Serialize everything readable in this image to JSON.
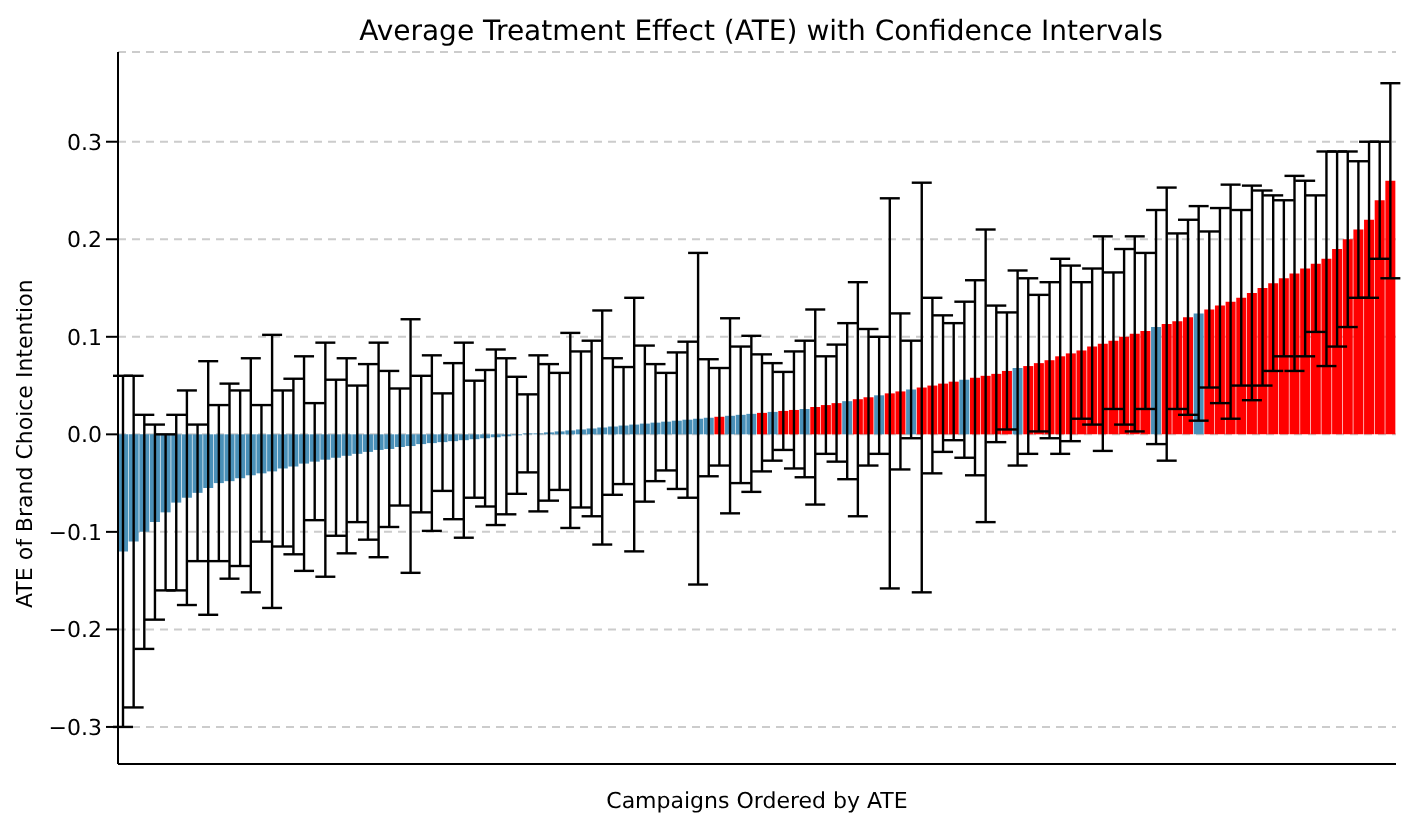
{
  "chart_data": {
    "type": "bar",
    "title": "Average Treatment Effect (ATE) with Confidence Intervals",
    "xlabel": "Campaigns Ordered by ATE",
    "ylabel": "ATE of Brand Choice Intention",
    "categories": [
      null,
      null,
      null,
      null,
      null,
      null,
      null,
      null,
      null,
      null,
      null,
      null,
      null,
      null,
      null,
      null,
      null,
      null,
      null,
      null,
      null,
      null,
      null,
      null,
      null,
      null,
      null,
      null,
      null,
      null,
      null,
      null,
      null,
      null,
      null,
      null,
      null,
      null,
      null,
      null,
      null,
      null,
      null,
      null,
      null,
      null,
      null,
      null,
      null,
      null,
      null,
      null,
      null,
      null,
      null,
      null,
      null,
      null,
      null,
      null,
      null,
      null,
      null,
      null,
      null,
      null,
      null,
      null,
      null,
      null,
      null,
      null,
      null,
      null,
      null,
      null,
      null,
      null,
      null,
      null,
      null,
      null,
      null,
      null,
      null,
      null,
      null,
      null,
      null,
      null,
      null,
      null,
      null,
      null,
      null,
      null,
      null,
      null,
      null,
      null,
      null,
      null,
      null,
      null,
      null,
      null,
      null,
      null,
      null,
      null,
      null,
      null,
      null,
      null,
      null,
      null,
      null,
      null,
      null,
      null
    ],
    "values": [
      -0.12,
      -0.11,
      -0.1,
      -0.09,
      -0.08,
      -0.07,
      -0.065,
      -0.06,
      -0.055,
      -0.05,
      -0.048,
      -0.045,
      -0.042,
      -0.04,
      -0.038,
      -0.035,
      -0.033,
      -0.03,
      -0.028,
      -0.026,
      -0.024,
      -0.022,
      -0.02,
      -0.018,
      -0.016,
      -0.015,
      -0.013,
      -0.012,
      -0.01,
      -0.009,
      -0.008,
      -0.007,
      -0.006,
      -0.005,
      -0.004,
      -0.003,
      -0.002,
      -0.001,
      0.001,
      0.001,
      0.002,
      0.003,
      0.004,
      0.005,
      0.006,
      0.007,
      0.008,
      0.009,
      0.01,
      0.011,
      0.012,
      0.013,
      0.014,
      0.015,
      0.016,
      0.017,
      0.018,
      0.019,
      0.02,
      0.021,
      0.022,
      0.023,
      0.024,
      0.025,
      0.026,
      0.028,
      0.03,
      0.032,
      0.034,
      0.036,
      0.038,
      0.04,
      0.042,
      0.044,
      0.046,
      0.048,
      0.05,
      0.052,
      0.054,
      0.056,
      0.058,
      0.06,
      0.062,
      0.065,
      0.068,
      0.07,
      0.073,
      0.076,
      0.08,
      0.083,
      0.086,
      0.09,
      0.093,
      0.096,
      0.1,
      0.103,
      0.106,
      0.11,
      0.113,
      0.116,
      0.12,
      0.124,
      0.128,
      0.132,
      0.136,
      0.14,
      0.145,
      0.15,
      0.155,
      0.16,
      0.165,
      0.17,
      0.175,
      0.18,
      0.19,
      0.2,
      0.21,
      0.22,
      0.24,
      0.26
    ],
    "errors": [
      0.18,
      0.17,
      0.12,
      0.1,
      0.08,
      0.09,
      0.11,
      0.07,
      0.13,
      0.08,
      0.1,
      0.09,
      0.12,
      0.07,
      0.14,
      0.08,
      0.09,
      0.11,
      0.06,
      0.12,
      0.08,
      0.1,
      0.07,
      0.09,
      0.11,
      0.08,
      0.06,
      0.13,
      0.07,
      0.09,
      0.05,
      0.08,
      0.1,
      0.06,
      0.07,
      0.09,
      0.08,
      0.06,
      0.04,
      0.08,
      0.07,
      0.06,
      0.1,
      0.08,
      0.09,
      0.12,
      0.07,
      0.06,
      0.13,
      0.08,
      0.06,
      0.05,
      0.07,
      0.08,
      0.17,
      0.06,
      0.05,
      0.1,
      0.07,
      0.08,
      0.06,
      0.05,
      0.04,
      0.06,
      0.07,
      0.1,
      0.05,
      0.06,
      0.08,
      0.12,
      0.07,
      0.06,
      0.2,
      0.08,
      0.05,
      0.21,
      0.09,
      0.07,
      0.06,
      0.08,
      0.1,
      0.15,
      0.07,
      0.06,
      0.1,
      0.09,
      0.07,
      0.08,
      0.1,
      0.09,
      0.07,
      0.08,
      0.11,
      0.07,
      0.09,
      0.1,
      0.08,
      0.12,
      0.14,
      0.09,
      0.1,
      0.11,
      0.08,
      0.1,
      0.12,
      0.09,
      0.11,
      0.1,
      0.09,
      0.08,
      0.1,
      0.09,
      0.07,
      0.11,
      0.1,
      0.09,
      0.07,
      0.08,
      0.06,
      0.1
    ],
    "colors": [
      "#4a90b8",
      "#4a90b8",
      "#4a90b8",
      "#4a90b8",
      "#4a90b8",
      "#4a90b8",
      "#4a90b8",
      "#4a90b8",
      "#4a90b8",
      "#4a90b8",
      "#4a90b8",
      "#4a90b8",
      "#4a90b8",
      "#4a90b8",
      "#4a90b8",
      "#4a90b8",
      "#4a90b8",
      "#4a90b8",
      "#4a90b8",
      "#4a90b8",
      "#4a90b8",
      "#4a90b8",
      "#4a90b8",
      "#4a90b8",
      "#4a90b8",
      "#4a90b8",
      "#4a90b8",
      "#4a90b8",
      "#4a90b8",
      "#4a90b8",
      "#4a90b8",
      "#4a90b8",
      "#4a90b8",
      "#4a90b8",
      "#4a90b8",
      "#4a90b8",
      "#4a90b8",
      "#4a90b8",
      "#4a90b8",
      "#4a90b8",
      "#4a90b8",
      "#4a90b8",
      "#4a90b8",
      "#4a90b8",
      "#4a90b8",
      "#4a90b8",
      "#4a90b8",
      "#4a90b8",
      "#4a90b8",
      "#4a90b8",
      "#4a90b8",
      "#4a90b8",
      "#4a90b8",
      "#4a90b8",
      "#4a90b8",
      "#4a90b8",
      "#ff0000",
      "#4a90b8",
      "#4a90b8",
      "#4a90b8",
      "#ff0000",
      "#4a90b8",
      "#ff0000",
      "#ff0000",
      "#4a90b8",
      "#ff0000",
      "#ff0000",
      "#ff0000",
      "#4a90b8",
      "#ff0000",
      "#ff0000",
      "#4a90b8",
      "#ff0000",
      "#ff0000",
      "#4a90b8",
      "#ff0000",
      "#ff0000",
      "#ff0000",
      "#ff0000",
      "#4a90b8",
      "#ff0000",
      "#ff0000",
      "#ff0000",
      "#ff0000",
      "#4a90b8",
      "#ff0000",
      "#ff0000",
      "#ff0000",
      "#ff0000",
      "#ff0000",
      "#ff0000",
      "#ff0000",
      "#ff0000",
      "#ff0000",
      "#ff0000",
      "#ff0000",
      "#ff0000",
      "#4a90b8",
      "#ff0000",
      "#ff0000",
      "#ff0000",
      "#4a90b8",
      "#ff0000",
      "#ff0000",
      "#ff0000",
      "#ff0000",
      "#ff0000",
      "#ff0000",
      "#ff0000",
      "#ff0000",
      "#ff0000",
      "#ff0000",
      "#ff0000",
      "#ff0000",
      "#ff0000",
      "#ff0000",
      "#ff0000",
      "#ff0000",
      "#ff0000",
      "#ff0000"
    ],
    "ylim": [
      -0.338,
      0.392
    ],
    "yticks": [
      {
        "value": -0.3,
        "label": "−0.3"
      },
      {
        "value": -0.2,
        "label": "−0.2"
      },
      {
        "value": -0.1,
        "label": "−0.1"
      },
      {
        "value": 0,
        "label": "0.0"
      },
      {
        "value": 0.1,
        "label": "0.1"
      },
      {
        "value": 0.2,
        "label": "0.2"
      },
      {
        "value": 0.3,
        "label": "0.3"
      }
    ],
    "grid": "y"
  }
}
